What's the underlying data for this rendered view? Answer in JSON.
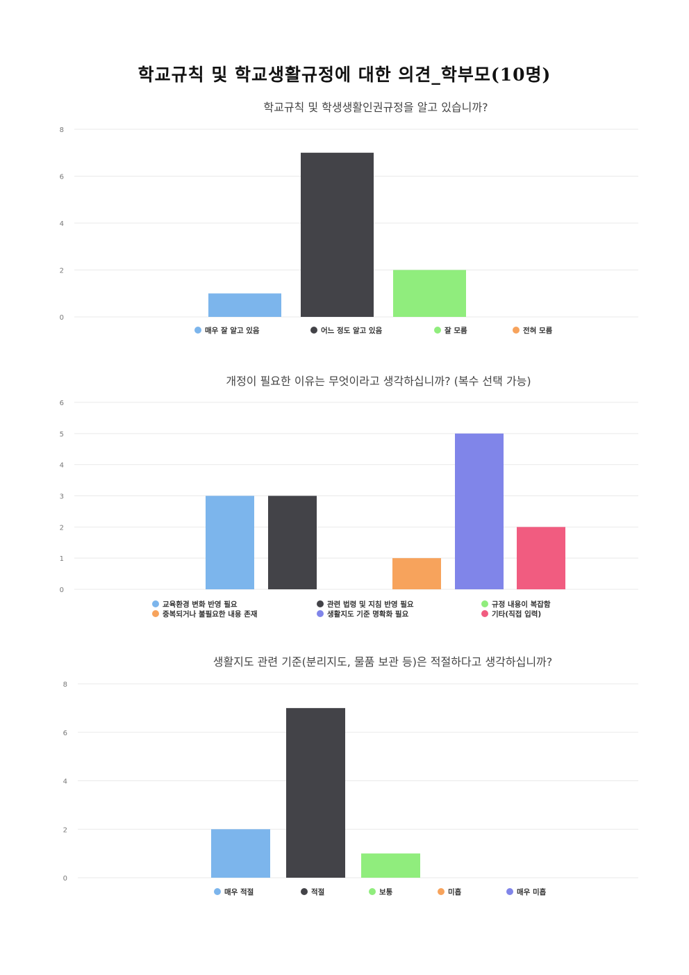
{
  "page_title": "학교규칙 및 학교생활규정에 대한 의견_학부모(10명)",
  "colors": {
    "blue": "#7cb5ec",
    "dark": "#434348",
    "green": "#90ed7d",
    "orange": "#f7a35c",
    "purple": "#8085e9",
    "pink": "#f15c80"
  },
  "chart_data": [
    {
      "type": "bar",
      "title": "학교규칙 및 학생생활인권규정을 알고 있습니까?",
      "categories": [
        "매우 잘 알고 있음",
        "어느 정도 알고 있음",
        "잘 모름",
        "전혀 모름"
      ],
      "values": [
        1,
        7,
        2,
        0
      ],
      "colors": [
        "#7cb5ec",
        "#434348",
        "#90ed7d",
        "#f7a35c"
      ],
      "ylim": [
        0,
        8
      ],
      "yticks": [
        0,
        2,
        4,
        6,
        8
      ],
      "grid": true,
      "legend": "bottom"
    },
    {
      "type": "bar",
      "title": "개정이 필요한 이유는 무엇이라고 생각하십니까? (복수 선택 가능)",
      "categories": [
        "교육환경 변화 반영 필요",
        "관련 법령 및 지침 반영 필요",
        "규정 내용이 복잡함",
        "중복되거나 불필요한 내용 존재",
        "생활지도 기준 명확화 필요",
        "기타(직접 입력)"
      ],
      "values": [
        3,
        3,
        0,
        1,
        5,
        2
      ],
      "colors": [
        "#7cb5ec",
        "#434348",
        "#90ed7d",
        "#f7a35c",
        "#8085e9",
        "#f15c80"
      ],
      "ylim": [
        0,
        6
      ],
      "yticks": [
        0,
        1,
        2,
        3,
        4,
        5,
        6
      ],
      "grid": true,
      "legend": "bottom"
    },
    {
      "type": "bar",
      "title": "생활지도 관련 기준(분리지도, 물품 보관 등)은 적절하다고 생각하십니까?",
      "categories": [
        "매우 적절",
        "적절",
        "보통",
        "미흡",
        "매우 미흡"
      ],
      "values": [
        2,
        7,
        1,
        0,
        0
      ],
      "colors": [
        "#7cb5ec",
        "#434348",
        "#90ed7d",
        "#f7a35c",
        "#8085e9"
      ],
      "ylim": [
        0,
        8
      ],
      "yticks": [
        0,
        2,
        4,
        6,
        8
      ],
      "grid": true,
      "legend": "bottom"
    }
  ]
}
